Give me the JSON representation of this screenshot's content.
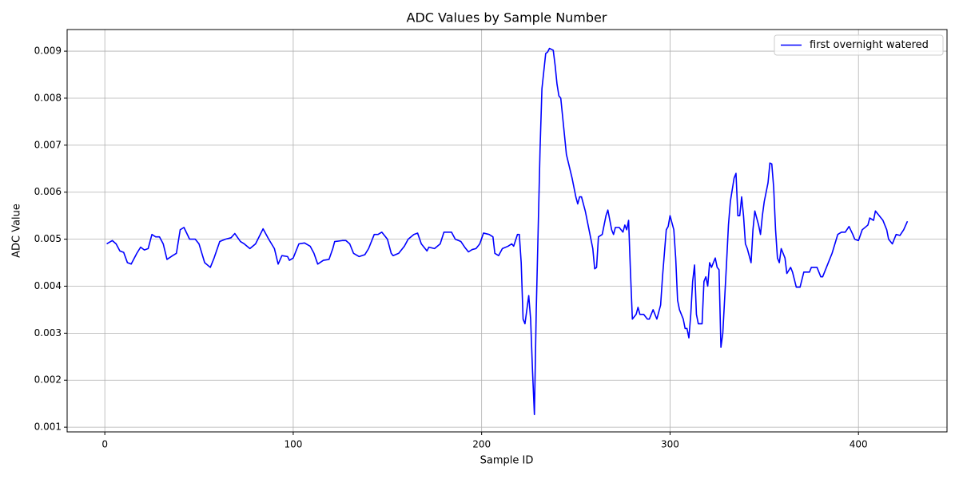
{
  "chart_data": {
    "type": "line",
    "title": "ADC Values by Sample Number",
    "xlabel": "Sample ID",
    "ylabel": "ADC Value",
    "xlim": [
      -20,
      447
    ],
    "xticks": [
      0,
      100,
      200,
      300,
      400
    ],
    "ylim": [
      0.0009,
      0.00946
    ],
    "yticks": [
      0.001,
      0.002,
      0.003,
      0.004,
      0.005,
      0.006,
      0.007,
      0.008,
      0.009
    ],
    "grid": true,
    "legend": "upper right",
    "x": [
      1,
      4,
      6,
      8,
      10,
      12,
      14,
      17,
      19,
      21,
      23,
      25,
      27,
      29,
      31,
      33,
      36,
      38,
      40,
      42,
      45,
      48,
      50,
      53,
      56,
      58,
      61,
      64,
      67,
      69,
      72,
      74,
      77,
      80,
      84,
      87,
      90,
      92,
      94,
      97,
      98,
      100,
      103,
      106,
      109,
      111,
      113,
      116,
      119,
      121,
      122,
      126,
      128,
      130,
      132,
      135,
      138,
      140,
      143,
      145,
      147,
      150,
      152,
      153,
      156,
      159,
      161,
      164,
      166,
      168,
      171,
      172,
      175,
      178,
      180,
      184,
      186,
      189,
      191,
      193,
      195,
      197,
      199,
      201,
      204,
      206,
      207,
      209,
      211,
      214,
      216,
      217,
      219,
      220,
      221,
      222,
      223,
      225,
      226,
      227,
      228,
      229,
      231,
      232,
      234,
      235,
      236,
      238,
      239,
      240,
      241,
      242,
      244,
      245,
      248,
      250,
      251,
      252,
      253,
      255,
      257,
      259,
      260,
      261,
      262,
      264,
      266,
      267,
      269,
      270,
      271,
      273,
      275,
      276,
      277,
      278,
      279,
      280,
      282,
      283,
      284,
      286,
      288,
      289,
      291,
      292,
      293,
      295,
      296,
      298,
      299,
      300,
      302,
      303,
      304,
      305,
      307,
      308,
      309,
      310,
      311,
      312,
      313,
      314,
      315,
      317,
      318,
      319,
      320,
      321,
      322,
      324,
      325,
      326,
      327,
      328,
      330,
      331,
      332,
      334,
      335,
      336,
      337,
      338,
      339,
      340,
      341,
      343,
      344,
      345,
      347,
      348,
      349,
      350,
      352,
      353,
      354,
      355,
      356,
      357,
      358,
      359,
      361,
      362,
      364,
      365,
      367,
      369,
      371,
      374,
      375,
      378,
      380,
      381,
      384,
      386,
      389,
      391,
      393,
      395,
      397,
      398,
      400,
      402,
      405,
      406,
      408,
      409,
      411,
      413,
      415,
      416,
      418,
      420,
      422,
      424,
      426
    ],
    "series": [
      {
        "name": "first overnight watered",
        "color": "#0000ff",
        "values": [
          0.0049,
          0.00497,
          0.0049,
          0.00475,
          0.00472,
          0.0045,
          0.00447,
          0.0047,
          0.00483,
          0.00477,
          0.0048,
          0.0051,
          0.00505,
          0.00505,
          0.0049,
          0.00457,
          0.00465,
          0.0047,
          0.0052,
          0.00525,
          0.005,
          0.005,
          0.0049,
          0.0045,
          0.0044,
          0.0046,
          0.00495,
          0.005,
          0.00503,
          0.00512,
          0.00495,
          0.0049,
          0.0048,
          0.0049,
          0.00522,
          0.005,
          0.0048,
          0.00447,
          0.00465,
          0.00463,
          0.00455,
          0.0046,
          0.0049,
          0.00492,
          0.00485,
          0.0047,
          0.00447,
          0.00455,
          0.00457,
          0.0048,
          0.00495,
          0.00497,
          0.00497,
          0.0049,
          0.0047,
          0.00463,
          0.00467,
          0.0048,
          0.0051,
          0.0051,
          0.00515,
          0.005,
          0.0047,
          0.00465,
          0.0047,
          0.00485,
          0.005,
          0.0051,
          0.00513,
          0.0049,
          0.00475,
          0.00483,
          0.0048,
          0.0049,
          0.00515,
          0.00515,
          0.005,
          0.00495,
          0.00483,
          0.00473,
          0.00478,
          0.0048,
          0.0049,
          0.00513,
          0.0051,
          0.00505,
          0.0047,
          0.00465,
          0.0048,
          0.00485,
          0.0049,
          0.00485,
          0.0051,
          0.0051,
          0.0045,
          0.0033,
          0.0032,
          0.0038,
          0.0033,
          0.0022,
          0.00127,
          0.0035,
          0.0069,
          0.0082,
          0.00895,
          0.00898,
          0.00906,
          0.00902,
          0.0087,
          0.0083,
          0.00805,
          0.008,
          0.0072,
          0.0068,
          0.0063,
          0.0059,
          0.00575,
          0.0059,
          0.0059,
          0.0056,
          0.0052,
          0.0048,
          0.00437,
          0.0044,
          0.00505,
          0.0051,
          0.0055,
          0.00562,
          0.0052,
          0.0051,
          0.00525,
          0.00525,
          0.00515,
          0.0053,
          0.0052,
          0.0054,
          0.0043,
          0.0033,
          0.0034,
          0.00355,
          0.0034,
          0.0034,
          0.0033,
          0.0033,
          0.0035,
          0.0034,
          0.0033,
          0.0036,
          0.0042,
          0.0052,
          0.00527,
          0.0055,
          0.0052,
          0.0046,
          0.0037,
          0.0035,
          0.0033,
          0.0031,
          0.0031,
          0.0029,
          0.0034,
          0.0041,
          0.00445,
          0.0034,
          0.0032,
          0.0032,
          0.0041,
          0.0042,
          0.004,
          0.0045,
          0.0044,
          0.0046,
          0.0044,
          0.00435,
          0.0027,
          0.003,
          0.0045,
          0.0053,
          0.0058,
          0.0063,
          0.0064,
          0.0055,
          0.0055,
          0.0059,
          0.0055,
          0.0049,
          0.0048,
          0.0045,
          0.0052,
          0.0056,
          0.0053,
          0.0051,
          0.0055,
          0.0058,
          0.0062,
          0.00662,
          0.0066,
          0.0061,
          0.0052,
          0.0046,
          0.0045,
          0.0048,
          0.0046,
          0.00427,
          0.0044,
          0.0043,
          0.00398,
          0.00398,
          0.0043,
          0.0043,
          0.0044,
          0.0044,
          0.0042,
          0.0042,
          0.0045,
          0.0047,
          0.0051,
          0.00515,
          0.00515,
          0.00527,
          0.0051,
          0.005,
          0.00497,
          0.0052,
          0.0053,
          0.00545,
          0.0054,
          0.0056,
          0.0055,
          0.0054,
          0.0052,
          0.005,
          0.0049,
          0.0051,
          0.00508,
          0.0052,
          0.00538
        ]
      }
    ]
  }
}
